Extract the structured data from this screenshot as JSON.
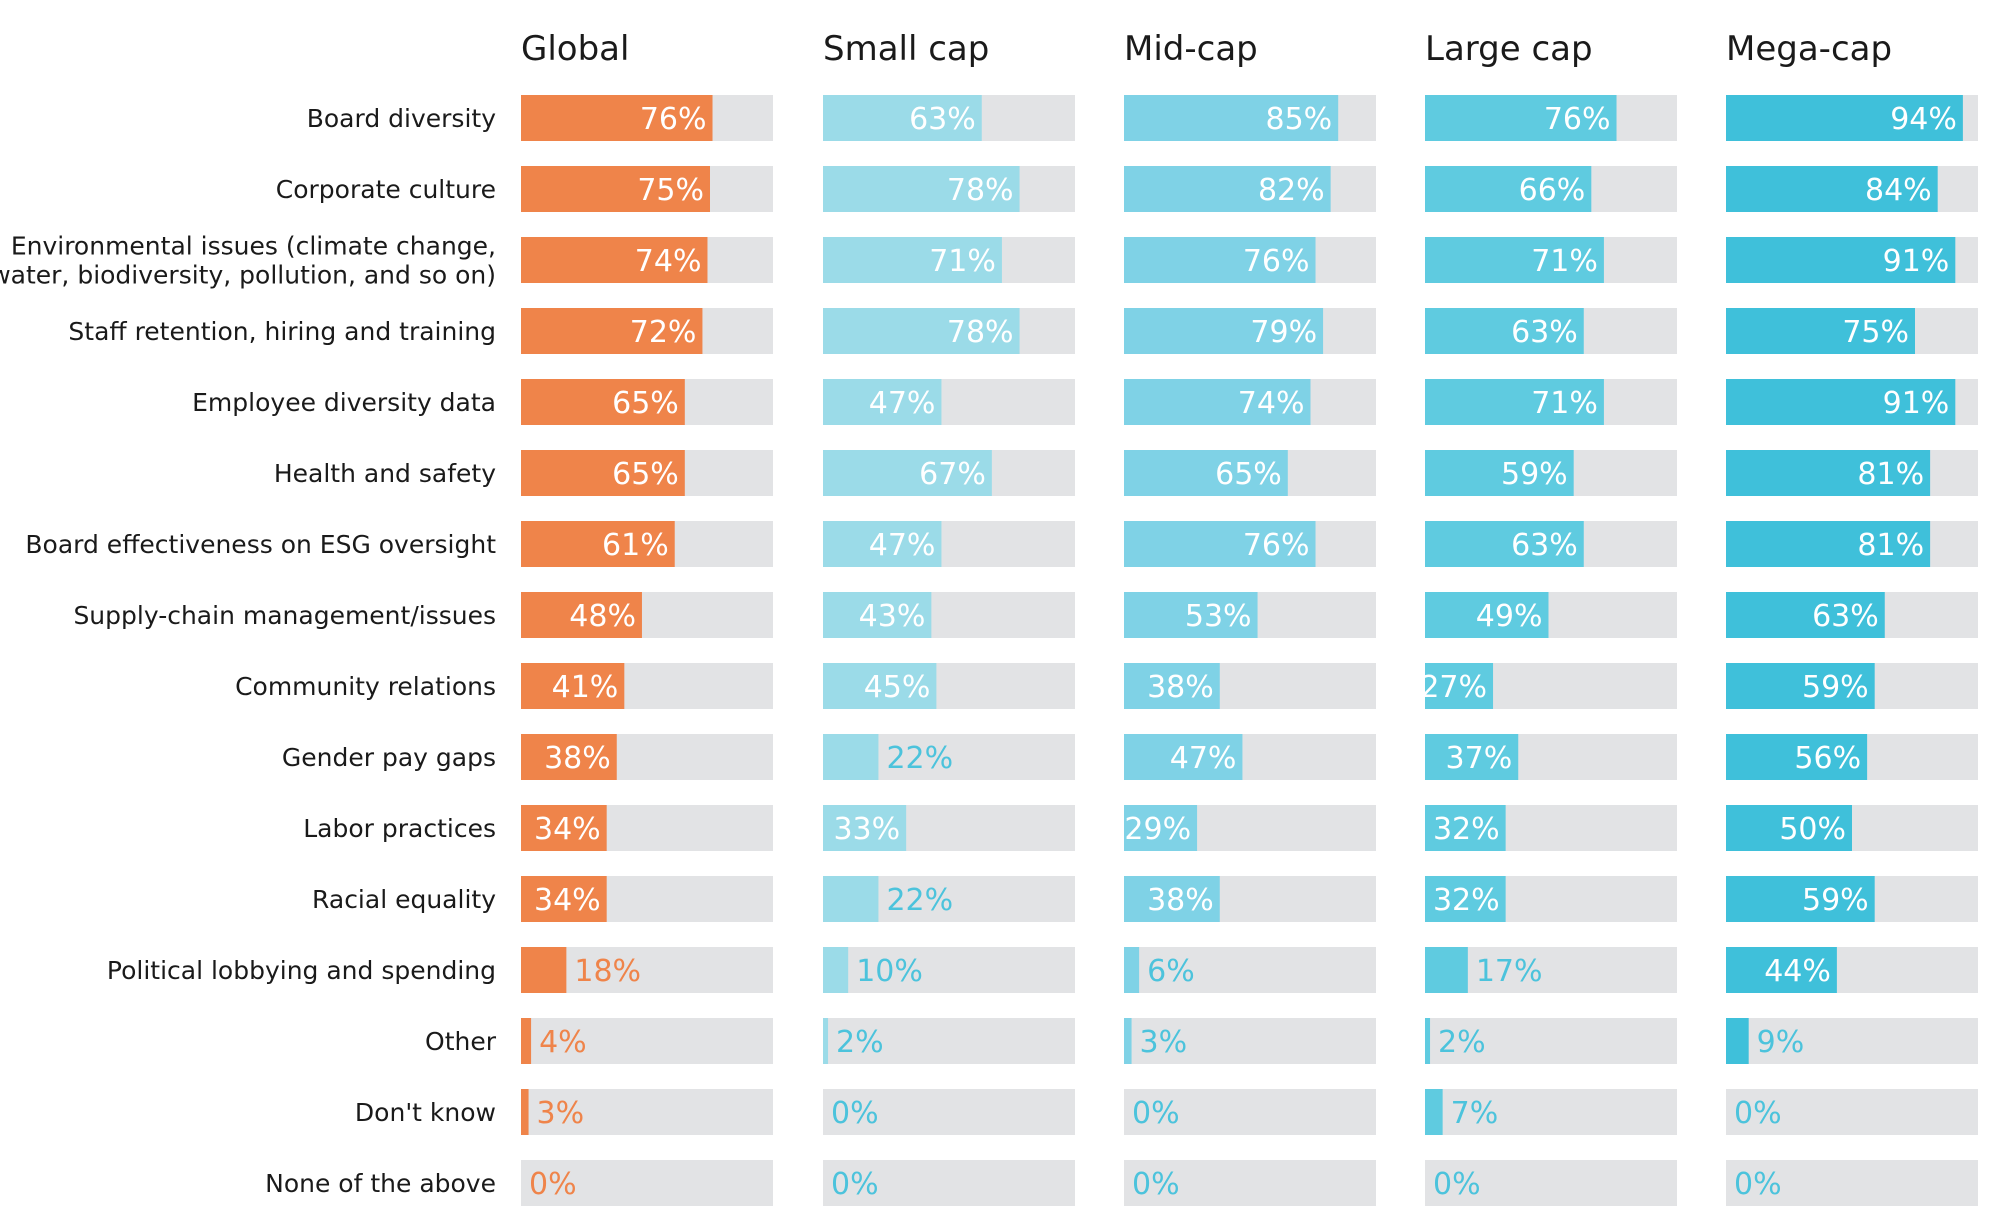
{
  "chart_data": {
    "type": "bar",
    "orientation": "horizontal",
    "title": "",
    "xlabel": "",
    "ylabel": "",
    "xlim": [
      0,
      100
    ],
    "value_format": "percent",
    "categories": [
      "Board diversity",
      "Corporate culture",
      "Environmental issues (climate change,\nwater, biodiversity, pollution, and so on)",
      "Staff retention, hiring and training",
      "Employee diversity data",
      "Health and safety",
      "Board effectiveness on ESG oversight",
      "Supply-chain management/issues",
      "Community relations",
      "Gender pay gaps",
      "Labor practices",
      "Racial equality",
      "Political lobbying and spending",
      "Other",
      "Don't know",
      "None of the above"
    ],
    "series": [
      {
        "name": "Global",
        "color": "#ef844a",
        "values": [
          76,
          75,
          74,
          72,
          65,
          65,
          61,
          48,
          41,
          38,
          34,
          34,
          18,
          4,
          3,
          0
        ]
      },
      {
        "name": "Small cap",
        "color": "#9bdbe8",
        "values": [
          63,
          78,
          71,
          78,
          47,
          67,
          47,
          43,
          45,
          22,
          33,
          22,
          10,
          2,
          0,
          0
        ]
      },
      {
        "name": "Mid-cap",
        "color": "#7fd2e6",
        "values": [
          85,
          82,
          76,
          79,
          74,
          65,
          76,
          53,
          38,
          47,
          29,
          38,
          6,
          3,
          0,
          0
        ]
      },
      {
        "name": "Large cap",
        "color": "#5fcbe0",
        "values": [
          76,
          66,
          71,
          63,
          71,
          59,
          63,
          49,
          27,
          37,
          32,
          32,
          17,
          2,
          7,
          0
        ]
      },
      {
        "name": "Mega-cap",
        "color": "#3fc0da",
        "values": [
          94,
          84,
          91,
          75,
          91,
          81,
          81,
          63,
          59,
          56,
          50,
          59,
          44,
          9,
          0,
          0
        ]
      }
    ],
    "track_color": "#e2e3e5",
    "inside_label_color": "#ffffff",
    "outside_label_colors": [
      "#ef844a",
      "#4cc3dc",
      "#4cc3dc",
      "#4cc3dc",
      "#4cc3dc"
    ],
    "grid": false,
    "legend": "none"
  }
}
